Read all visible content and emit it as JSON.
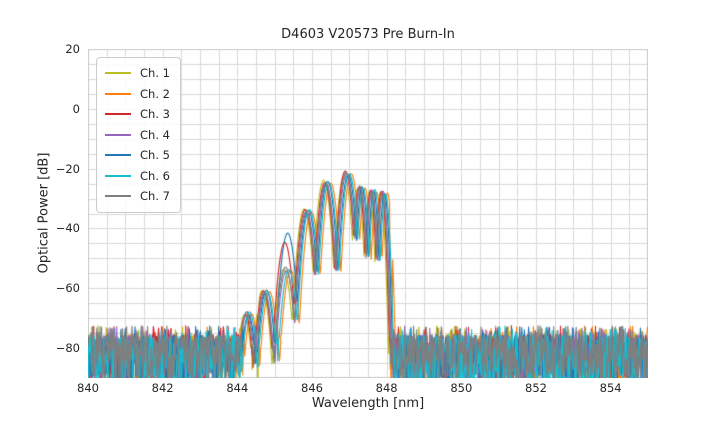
{
  "chart_data": {
    "type": "line",
    "title": "D4603 V20573 Pre Burn-In",
    "xlabel": "Wavelength [nm]",
    "ylabel": "Optical Power [dB]",
    "xlim": [
      840,
      855
    ],
    "ylim": [
      -90,
      20
    ],
    "xticks": [
      840,
      842,
      844,
      846,
      848,
      850,
      852,
      854
    ],
    "xticklabels": [
      "840",
      "842",
      "844",
      "846",
      "848",
      "850",
      "852",
      "854"
    ],
    "yticks": [
      20,
      0,
      -20,
      -40,
      -60,
      -80
    ],
    "yticklabels": [
      "20",
      "0",
      "−20",
      "−40",
      "−60",
      "−80"
    ],
    "grid": {
      "show": true,
      "x_step_nm": 0.5,
      "y_step_db": 5,
      "color": "#d9d9d9",
      "border_color": "#cccccc"
    },
    "legend_position": "upper-left",
    "series": [
      {
        "name": "Ch. 1",
        "color": "#bcbd22",
        "offset_nm": -0.09,
        "dropout_nm": 844.55
      },
      {
        "name": "Ch. 2",
        "color": "#ff7f0e",
        "offset_nm": 0.1,
        "dropout_nm": 848.12
      },
      {
        "name": "Ch. 3",
        "color": "#d62728",
        "offset_nm": -0.06,
        "lobe_peak_overrides": {
          "2": -44.0
        }
      },
      {
        "name": "Ch. 4",
        "color": "#9467bd",
        "offset_nm": -0.02
      },
      {
        "name": "Ch. 5",
        "color": "#1f77b4",
        "offset_nm": 0.02,
        "lobe_peak_overrides": {
          "2": -41.5
        }
      },
      {
        "name": "Ch. 6",
        "color": "#17becf",
        "offset_nm": 0.05
      },
      {
        "name": "Ch. 7",
        "color": "#7f7f7f",
        "offset_nm": -0.04
      }
    ],
    "envelope_lobes": [
      {
        "center_nm": 844.28,
        "peak_db": -68.5,
        "half_width_nm": 0.24
      },
      {
        "center_nm": 844.76,
        "peak_db": -61.0,
        "half_width_nm": 0.26
      },
      {
        "center_nm": 845.33,
        "peak_db": -53.5,
        "half_width_nm": 0.27
      },
      {
        "center_nm": 845.88,
        "peak_db": -34.0,
        "half_width_nm": 0.26
      },
      {
        "center_nm": 846.4,
        "peak_db": -24.5,
        "half_width_nm": 0.25
      },
      {
        "center_nm": 846.95,
        "peak_db": -21.5,
        "half_width_nm": 0.24
      },
      {
        "center_nm": 847.32,
        "peak_db": -26.0,
        "half_width_nm": 0.17
      },
      {
        "center_nm": 847.63,
        "peak_db": -27.5,
        "half_width_nm": 0.15
      },
      {
        "center_nm": 847.92,
        "peak_db": -28.0,
        "half_width_nm": 0.15
      }
    ],
    "notch_drop_db": 25,
    "noise_floor": {
      "typical_top_db": -75,
      "spike_top_db": -72.5,
      "bottom_db": -92,
      "visible_range_nm": [
        [
          840.0,
          844.2
        ],
        [
          848.3,
          855.0
        ]
      ]
    }
  }
}
